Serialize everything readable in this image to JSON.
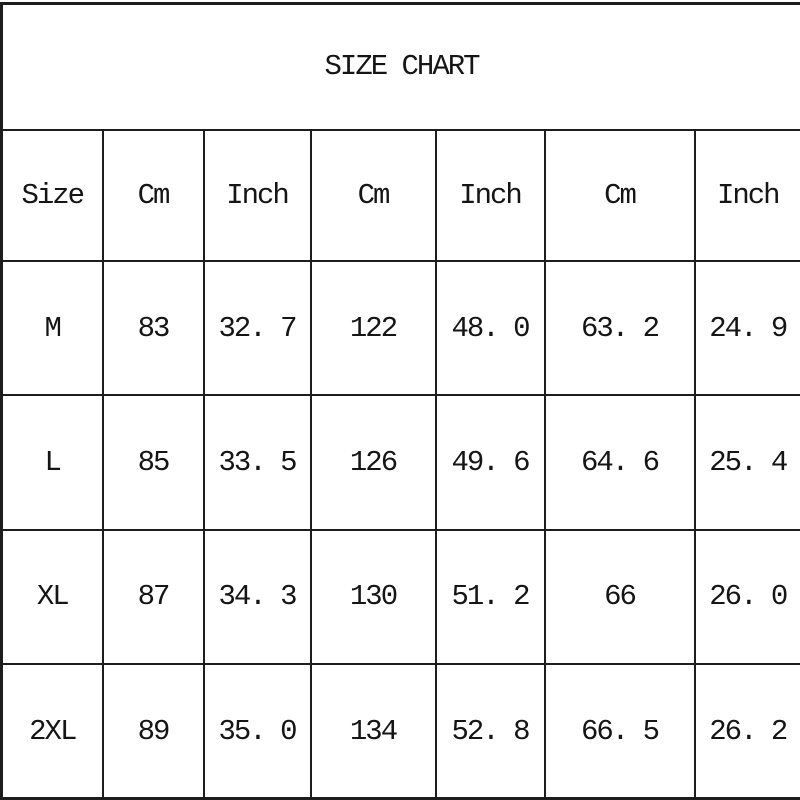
{
  "page": {
    "background_color": "#ffffff",
    "border_color": "#1d1d1d",
    "text_color": "#151515"
  },
  "table": {
    "title": "SIZE CHART",
    "headers": [
      "Size",
      "Cm",
      "Inch",
      "Cm",
      "Inch",
      "Cm",
      "Inch"
    ],
    "rows": [
      [
        "M",
        "83",
        "32. 7",
        "122",
        "48. 0",
        "63. 2",
        "24. 9"
      ],
      [
        "L",
        "85",
        "33. 5",
        "126",
        "49. 6",
        "64. 6",
        "25. 4"
      ],
      [
        "XL",
        "87",
        "34. 3",
        "130",
        "51. 2",
        "66",
        "26. 0"
      ],
      [
        "2XL",
        "89",
        "35. 0",
        "134",
        "52. 8",
        "66. 5",
        "26. 2"
      ]
    ]
  },
  "chart_data": {
    "type": "table",
    "title": "SIZE CHART",
    "columns": [
      "Size",
      "Cm",
      "Inch",
      "Cm",
      "Inch",
      "Cm",
      "Inch"
    ],
    "rows": [
      [
        "M",
        83,
        32.7,
        122,
        48.0,
        63.2,
        24.9
      ],
      [
        "L",
        85,
        33.5,
        126,
        49.6,
        64.6,
        25.4
      ],
      [
        "XL",
        87,
        34.3,
        130,
        51.2,
        66,
        26.0
      ],
      [
        "2XL",
        89,
        35.0,
        134,
        52.8,
        66.5,
        26.2
      ]
    ],
    "layout": "title row merged across 7 columns; columns alternate Cm/Inch measurement pairs; grid on; black 2px rules"
  }
}
